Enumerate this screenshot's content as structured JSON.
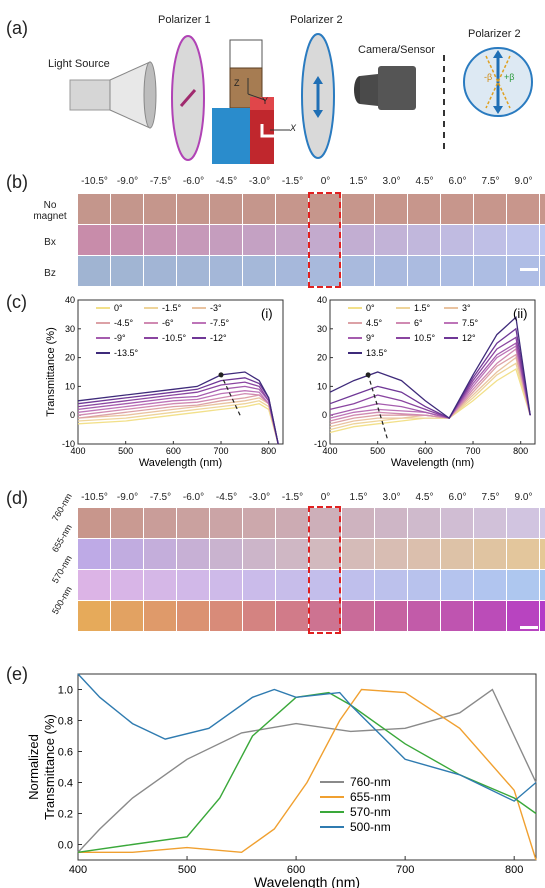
{
  "panels": {
    "a": "(a)",
    "b": "(b)",
    "c": "(c)",
    "d": "(d)",
    "e": "(e)"
  },
  "setup": {
    "light_source": "Light Source",
    "polarizer1": "Polarizer 1",
    "polarizer2": "Polarizer 2",
    "camera": "Camera/Sensor",
    "polarizer2_inset": "Polarizer 2",
    "axis_z": "Z",
    "axis_y": "Y",
    "axis_x": "X",
    "magnet_label": "N",
    "minus_beta": "-β",
    "plus_beta": "+β"
  },
  "panel_b": {
    "angles": [
      "-10.5°",
      "-9.0°",
      "-7.5°",
      "-6.0°",
      "-4.5°",
      "-3.0°",
      "-1.5°",
      "0°",
      "1.5°",
      "3.0°",
      "4.5°",
      "6.0°",
      "7.5°",
      "9.0°",
      "10.5°"
    ],
    "rows": [
      {
        "label_line1": "No",
        "label_line2": "magnet"
      },
      {
        "label_line1": "Bx",
        "label_line2": ""
      },
      {
        "label_line1": "Bz",
        "label_line2": ""
      }
    ]
  },
  "panel_c": {
    "left": {
      "tag": "(i)",
      "ylabel": "Transmittance (%)",
      "xlabel": "Wavelength (nm)",
      "xticks": [
        "400",
        "500",
        "600",
        "700",
        "800"
      ],
      "yticks": [
        "-10",
        "0",
        "10",
        "20",
        "30",
        "40"
      ],
      "legend": [
        "0°",
        "-1.5°",
        "-3°",
        "-4.5°",
        "-6°",
        "-7.5°",
        "-9°",
        "-10.5°",
        "-12°",
        "-13.5°"
      ]
    },
    "right": {
      "tag": "(ii)",
      "xlabel": "Wavelength (nm)",
      "xticks": [
        "400",
        "500",
        "600",
        "700",
        "800"
      ],
      "yticks": [
        "-10",
        "0",
        "10",
        "20",
        "30",
        "40"
      ],
      "legend": [
        "0°",
        "1.5°",
        "3°",
        "4.5°",
        "6°",
        "7.5°",
        "9°",
        "10.5°",
        "12°",
        "13.5°"
      ]
    }
  },
  "panel_d": {
    "angles": [
      "-10.5°",
      "-9.0°",
      "-7.5°",
      "-6.0°",
      "-4.5°",
      "-3.0°",
      "-1.5°",
      "0°",
      "1.5°",
      "3.0°",
      "4.5°",
      "6.0°",
      "7.5°",
      "9.0°",
      "10.5°"
    ],
    "rows": [
      "760-nm",
      "655-nm",
      "570-nm",
      "500-nm"
    ]
  },
  "chart_data": [
    {
      "type": "line",
      "title": "",
      "xlabel": "Wavelength (nm)",
      "ylabel": "Transmittance (%)",
      "xlim": [
        400,
        830
      ],
      "ylim": [
        -10,
        40
      ],
      "series": [
        {
          "name": "0°",
          "x": [
            400,
            500,
            600,
            650,
            700,
            750,
            780,
            800,
            820
          ],
          "y": [
            -3,
            -2,
            0,
            1,
            2,
            3,
            4,
            2,
            -10
          ]
        },
        {
          "name": "-1.5°",
          "x": [
            400,
            500,
            600,
            650,
            700,
            750,
            780,
            800,
            820
          ],
          "y": [
            -2,
            -1,
            1,
            2,
            3,
            4,
            5,
            3,
            -10
          ]
        },
        {
          "name": "-3°",
          "x": [
            400,
            500,
            600,
            650,
            700,
            750,
            780,
            800,
            820
          ],
          "y": [
            -1,
            0,
            2,
            3,
            4,
            5,
            6,
            4,
            -10
          ]
        },
        {
          "name": "-4.5°",
          "x": [
            400,
            500,
            600,
            650,
            700,
            750,
            780,
            800,
            820
          ],
          "y": [
            -1,
            1,
            3,
            3.5,
            5,
            6,
            7,
            4,
            -10
          ]
        },
        {
          "name": "-6°",
          "x": [
            400,
            500,
            600,
            650,
            700,
            750,
            780,
            800,
            820
          ],
          "y": [
            0,
            2,
            4,
            4.5,
            6,
            7.5,
            7,
            4,
            -10
          ]
        },
        {
          "name": "-7.5°",
          "x": [
            400,
            500,
            600,
            650,
            700,
            750,
            780,
            800,
            820
          ],
          "y": [
            1,
            3,
            5,
            5.5,
            7.5,
            8.5,
            8,
            4,
            -10
          ]
        },
        {
          "name": "-9°",
          "x": [
            400,
            500,
            600,
            650,
            700,
            750,
            780,
            800,
            820
          ],
          "y": [
            2,
            4,
            6,
            6.5,
            9,
            10,
            9,
            5,
            -10
          ]
        },
        {
          "name": "-10.5°",
          "x": [
            400,
            500,
            600,
            650,
            700,
            750,
            780,
            800,
            820
          ],
          "y": [
            3,
            5,
            7,
            8,
            10.5,
            11.5,
            10,
            5,
            -10
          ]
        },
        {
          "name": "-12°",
          "x": [
            400,
            500,
            600,
            650,
            700,
            750,
            780,
            800,
            820
          ],
          "y": [
            4,
            6,
            8,
            9,
            12,
            13,
            11,
            6,
            -10
          ]
        },
        {
          "name": "-13.5°",
          "x": [
            400,
            500,
            600,
            650,
            700,
            750,
            780,
            800,
            820
          ],
          "y": [
            5,
            7,
            9,
            10,
            14,
            15,
            12,
            6,
            -10
          ]
        }
      ]
    },
    {
      "type": "line",
      "title": "",
      "xlabel": "Wavelength (nm)",
      "ylabel": "",
      "xlim": [
        400,
        830
      ],
      "ylim": [
        -10,
        40
      ],
      "series": [
        {
          "name": "0°",
          "x": [
            400,
            450,
            500,
            550,
            600,
            650,
            700,
            750,
            790,
            820
          ],
          "y": [
            -6,
            -4,
            -3,
            -2,
            -1,
            -1,
            5,
            12,
            16,
            0
          ]
        },
        {
          "name": "1.5°",
          "x": [
            400,
            450,
            500,
            550,
            600,
            650,
            700,
            750,
            790,
            820
          ],
          "y": [
            -5,
            -3,
            -2,
            -1,
            -1,
            -1,
            6,
            14,
            18,
            0
          ]
        },
        {
          "name": "3°",
          "x": [
            400,
            450,
            500,
            550,
            600,
            650,
            700,
            750,
            790,
            820
          ],
          "y": [
            -4,
            -2,
            -1,
            -1,
            0,
            -1,
            7,
            15,
            20,
            0
          ]
        },
        {
          "name": "4.5°",
          "x": [
            400,
            450,
            500,
            550,
            600,
            650,
            700,
            750,
            790,
            820
          ],
          "y": [
            -3,
            -1,
            0,
            0,
            0,
            -1,
            8,
            17,
            21,
            0
          ]
        },
        {
          "name": "6°",
          "x": [
            400,
            450,
            500,
            550,
            600,
            650,
            700,
            750,
            790,
            820
          ],
          "y": [
            -2,
            0,
            1,
            0.5,
            0,
            -1,
            9,
            18,
            23,
            0
          ]
        },
        {
          "name": "7.5°",
          "x": [
            400,
            450,
            500,
            550,
            600,
            650,
            700,
            750,
            790,
            820
          ],
          "y": [
            -1,
            1,
            2,
            1.5,
            1,
            -1,
            10,
            20,
            24,
            0
          ]
        },
        {
          "name": "9°",
          "x": [
            400,
            450,
            500,
            550,
            600,
            650,
            700,
            750,
            790,
            820
          ],
          "y": [
            0,
            2,
            4,
            3,
            1,
            -1,
            11,
            21,
            25,
            0
          ]
        },
        {
          "name": "10.5°",
          "x": [
            400,
            450,
            500,
            550,
            600,
            650,
            700,
            750,
            790,
            820
          ],
          "y": [
            2,
            4,
            7,
            5,
            2,
            -1,
            12,
            23,
            27,
            0
          ]
        },
        {
          "name": "12°",
          "x": [
            400,
            450,
            500,
            550,
            600,
            650,
            700,
            750,
            790,
            820
          ],
          "y": [
            4,
            7,
            10,
            8,
            3,
            -1,
            13,
            25,
            30,
            0
          ]
        },
        {
          "name": "13.5°",
          "x": [
            400,
            450,
            500,
            550,
            600,
            650,
            700,
            750,
            790,
            820
          ],
          "y": [
            8,
            12,
            15,
            12,
            5,
            -1,
            14,
            28,
            34,
            0
          ]
        }
      ]
    },
    {
      "type": "line",
      "title": "",
      "xlabel": "Wavelength (nm)",
      "ylabel": "Normalized Transmittance (%)",
      "xlim": [
        400,
        820
      ],
      "ylim": [
        -0.1,
        1.1
      ],
      "legend_position": "bottom-right",
      "series": [
        {
          "name": "760-nm",
          "x": [
            400,
            420,
            450,
            500,
            550,
            600,
            650,
            700,
            750,
            780,
            800,
            820
          ],
          "y": [
            -0.05,
            0.1,
            0.3,
            0.55,
            0.72,
            0.78,
            0.73,
            0.75,
            0.85,
            1.0,
            0.7,
            0.4
          ]
        },
        {
          "name": "655-nm",
          "x": [
            400,
            450,
            500,
            550,
            580,
            610,
            640,
            660,
            700,
            750,
            800,
            820
          ],
          "y": [
            -0.05,
            -0.05,
            -0.02,
            -0.05,
            0.1,
            0.4,
            0.8,
            1.0,
            0.98,
            0.75,
            0.35,
            -0.1
          ]
        },
        {
          "name": "570-nm",
          "x": [
            400,
            450,
            500,
            530,
            560,
            600,
            630,
            650,
            700,
            750,
            800,
            820
          ],
          "y": [
            -0.05,
            0.0,
            0.05,
            0.3,
            0.7,
            0.95,
            0.98,
            0.9,
            0.65,
            0.45,
            0.3,
            0.2
          ]
        },
        {
          "name": "500-nm",
          "x": [
            400,
            420,
            450,
            480,
            520,
            560,
            580,
            600,
            640,
            650,
            700,
            750,
            800,
            820
          ],
          "y": [
            1.1,
            0.95,
            0.78,
            0.68,
            0.75,
            0.95,
            1.0,
            0.95,
            0.98,
            0.9,
            0.55,
            0.45,
            0.28,
            0.4
          ]
        }
      ]
    }
  ]
}
